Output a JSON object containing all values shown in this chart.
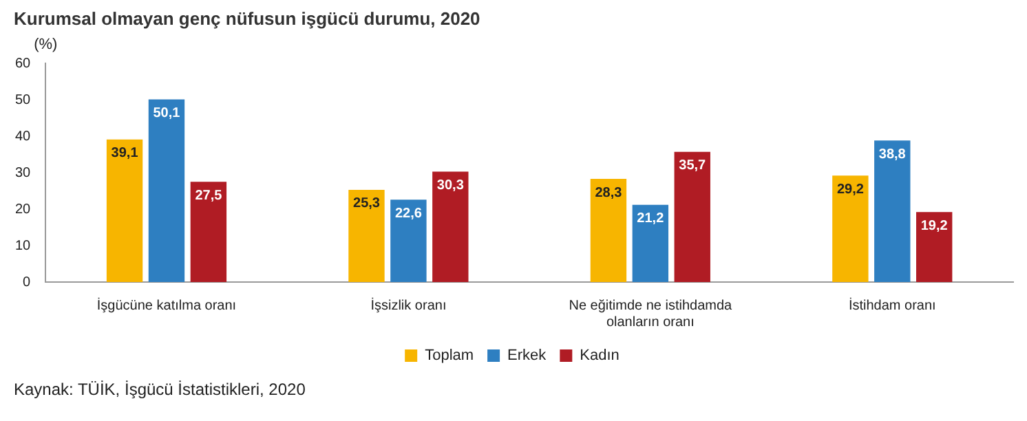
{
  "chart_data": {
    "type": "bar",
    "title": "Kurumsal olmayan genç nüfusun işgücü durumu, 2020",
    "ylabel": "(%)",
    "categories": [
      "İşgücüne katılma oranı",
      "İşsizlik oranı",
      "Ne eğitimde ne istihdamda olanların oranı",
      "İstihdam oranı"
    ],
    "series": [
      {
        "name": "Toplam",
        "color": "#f7b500",
        "values": [
          39.1,
          25.3,
          28.3,
          29.2
        ]
      },
      {
        "name": "Erkek",
        "color": "#2e7fc1",
        "values": [
          50.1,
          22.6,
          21.2,
          38.8
        ]
      },
      {
        "name": "Kadın",
        "color": "#b01c24",
        "values": [
          27.5,
          30.3,
          35.7,
          19.2
        ]
      }
    ],
    "value_labels": [
      [
        "39,1",
        "25,3",
        "28,3",
        "29,2"
      ],
      [
        "50,1",
        "22,6",
        "21,2",
        "38,8"
      ],
      [
        "27,5",
        "30,3",
        "35,7",
        "19,2"
      ]
    ],
    "ylim": [
      0,
      60
    ],
    "yticks": [
      0,
      10,
      20,
      30,
      40,
      50,
      60
    ],
    "grid": false,
    "legend": "bottom",
    "annotations": [
      "Kaynak: TÜİK, İşgücü İstatistikleri, 2020"
    ]
  }
}
